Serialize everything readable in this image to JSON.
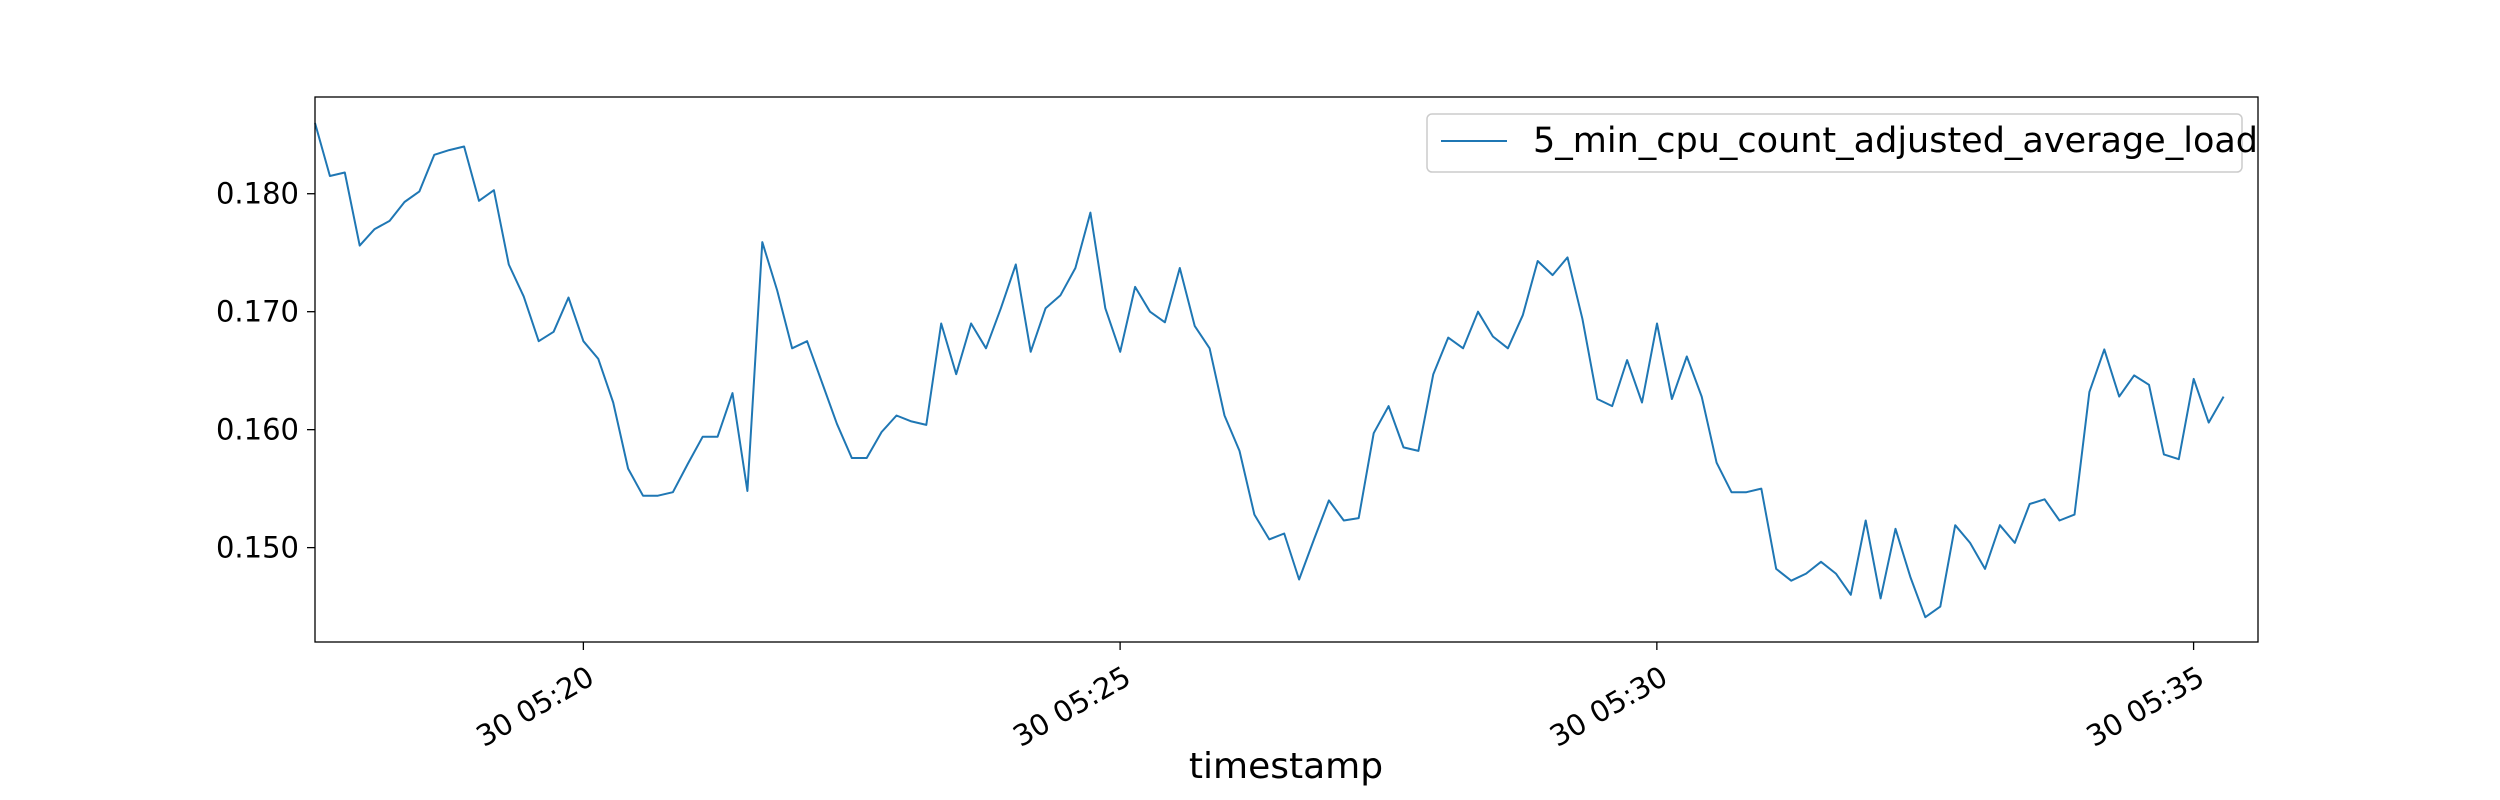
{
  "chart_data": {
    "type": "line",
    "title": "",
    "xlabel": "timestamp",
    "ylabel": "",
    "x_tick_labels": [
      "30 05:20",
      "30 05:25",
      "30 05:30",
      "30 05:35"
    ],
    "y_tick_labels": [
      "0.150",
      "0.160",
      "0.170",
      "0.180"
    ],
    "y_ticks": [
      0.15,
      0.16,
      0.17,
      0.18
    ],
    "x_ticks_min": [
      2.5,
      7.5,
      12.5,
      17.5
    ],
    "xlim_min": [
      0,
      18.1
    ],
    "ylim": [
      0.142,
      0.1882
    ],
    "x_unit": "minutes after 05:17:30",
    "grid": false,
    "legend_position": "top-right",
    "series": [
      {
        "name": "5_min_cpu_count_adjusted_average_load",
        "color": "#1f77b4",
        "x_step_min": 0.1389,
        "values": [
          0.186,
          0.1815,
          0.1818,
          0.1756,
          0.177,
          0.1777,
          0.1793,
          0.1802,
          0.1833,
          0.1837,
          0.184,
          0.1794,
          0.1803,
          0.174,
          0.1713,
          0.1675,
          0.1683,
          0.1712,
          0.1675,
          0.166,
          0.1623,
          0.1567,
          0.1544,
          0.1544,
          0.1547,
          0.1571,
          0.1594,
          0.1594,
          0.1631,
          0.1548,
          0.1759,
          0.1718,
          0.1669,
          0.1675,
          0.164,
          0.1605,
          0.1576,
          0.1576,
          0.1598,
          0.1612,
          0.1607,
          0.1604,
          0.169,
          0.1647,
          0.169,
          0.1669,
          0.1703,
          0.174,
          0.1666,
          0.1703,
          0.1714,
          0.1737,
          0.1784,
          0.1703,
          0.1666,
          0.1721,
          0.17,
          0.1691,
          0.1737,
          0.1688,
          0.1669,
          0.1612,
          0.1582,
          0.1528,
          0.1507,
          0.1512,
          0.1473,
          0.1507,
          0.154,
          0.1523,
          0.1525,
          0.1597,
          0.162,
          0.1585,
          0.1582,
          0.1647,
          0.1678,
          0.1669,
          0.17,
          0.1679,
          0.1669,
          0.1697,
          0.1743,
          0.1731,
          0.1746,
          0.1694,
          0.1626,
          0.162,
          0.1659,
          0.1623,
          0.169,
          0.1626,
          0.1662,
          0.1628,
          0.1572,
          0.1547,
          0.1547,
          0.155,
          0.1482,
          0.1472,
          0.1478,
          0.1488,
          0.1478,
          0.146,
          0.1523,
          0.1457,
          0.1516,
          0.1475,
          0.1441,
          0.145,
          0.1519,
          0.1504,
          0.1482,
          0.1519,
          0.1504,
          0.1537,
          0.1541,
          0.1523,
          0.1528,
          0.1632,
          0.1668,
          0.1628,
          0.1646,
          0.1638,
          0.1579,
          0.1575,
          0.1643,
          0.1606,
          0.1628
        ]
      }
    ]
  }
}
